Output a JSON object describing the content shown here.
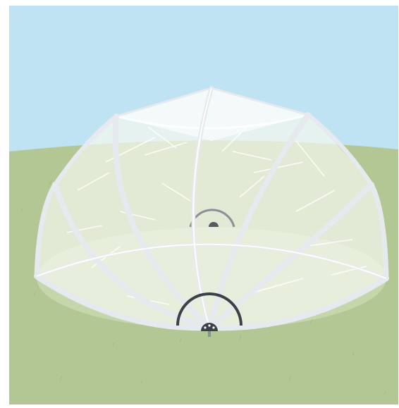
{
  "scene": {
    "subject": "mosquito-net-dome-tent",
    "colors": {
      "sky": "#bfe3f2",
      "grass": "#b3c795",
      "grass_shadow": "#a6bd86",
      "net_fill": "#f4f8ee",
      "frame": "#e6e9ee",
      "hub": "#3a4248",
      "hub_light": "#8a9096"
    }
  }
}
